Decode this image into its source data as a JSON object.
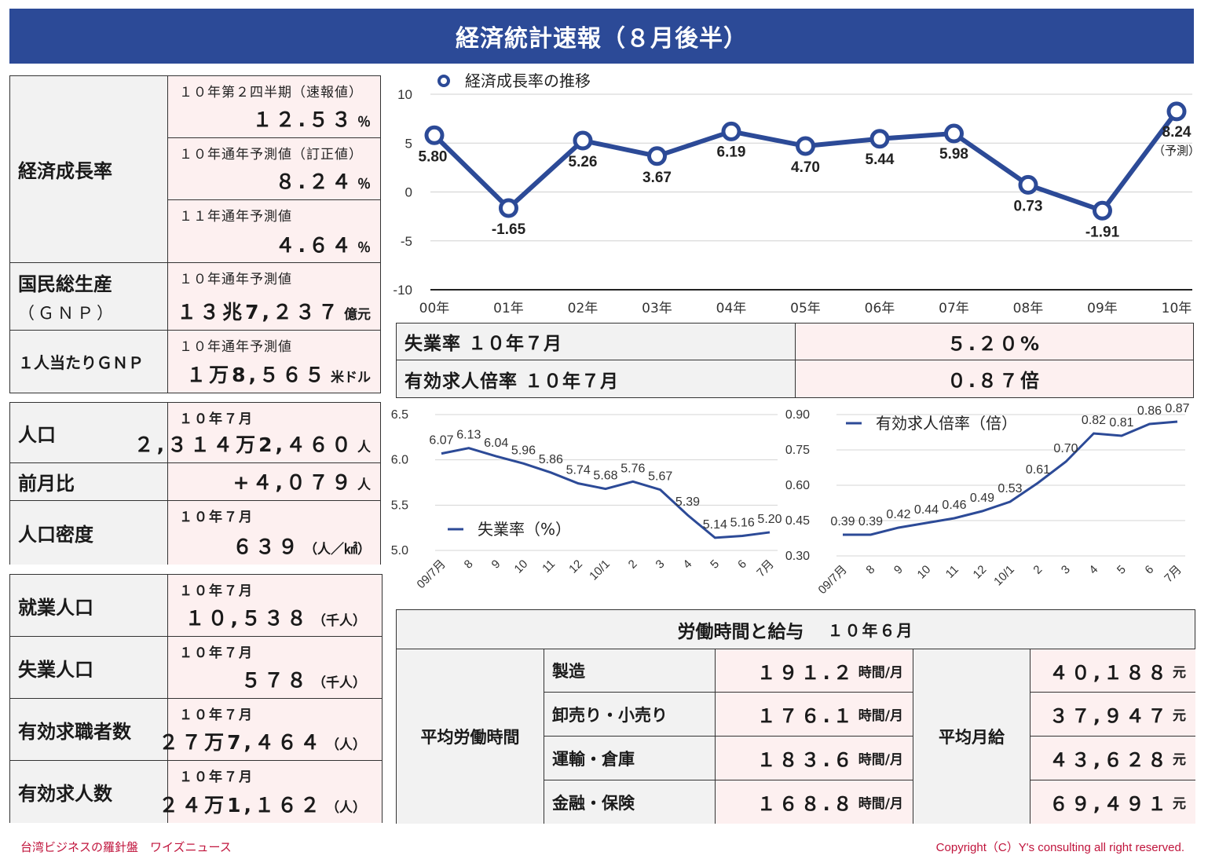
{
  "title": "経済統計速報（８月後半）",
  "left_table1": {
    "growth_label": "経済成長率",
    "growth_items": [
      {
        "note": "１０年第２四半期（速報値）",
        "value": "１２.５３",
        "unit": "％"
      },
      {
        "note": "１０年通年予測値（訂正値）",
        "value": "８.２４",
        "unit": "％"
      },
      {
        "note": "１１年通年予測値",
        "value": "４.６４",
        "unit": "％"
      }
    ],
    "gnp_label": "国民総生産",
    "gnp_label2": "（ＧＮＰ）",
    "gnp_note": "１０年通年予測値",
    "gnp_value": "１３兆7,２３７",
    "gnp_unit": "億元",
    "gnp_pc_label": "１人当たりＧＮＰ",
    "gnp_pc_note": "１０年通年予測値",
    "gnp_pc_value": "１万8,５６５",
    "gnp_pc_unit": "米ドル"
  },
  "left_table2": {
    "pop_label": "人口",
    "pop_note": "１０年７月",
    "pop_value": "２,３１４万2,４６０",
    "pop_unit": "人",
    "mom_label": "前月比",
    "mom_value": "+４,０７９",
    "mom_unit": "人",
    "density_label": "人口密度",
    "density_note": "１０年７月",
    "density_value": "６３９",
    "density_unit": "（人／㎢）"
  },
  "left_table3": {
    "rows": [
      {
        "label": "就業人口",
        "note": "１０年７月",
        "value": "１０,５３８",
        "unit": "（千人）"
      },
      {
        "label": "失業人口",
        "note": "１０年７月",
        "value": "５７８",
        "unit": "（千人）"
      },
      {
        "label": "有効求職者数",
        "note": "１０年７月",
        "value": "２７万7,４６４",
        "unit": "（人）"
      },
      {
        "label": "有効求人数",
        "note": "１０年７月",
        "value": "２４万1,１６２",
        "unit": "（人）"
      }
    ]
  },
  "unemployment": {
    "rate_label": "失業率 １０年７月",
    "rate_value": "５.２０%",
    "ratio_label": "有効求人倍率 １０年７月",
    "ratio_value": "０.８７倍"
  },
  "labor": {
    "title": "労働時間と給与",
    "month": "１０年６月",
    "hours_label": "平均労働時間",
    "salary_label": "平均月給",
    "hours_unit": "時間/月",
    "salary_unit": "元",
    "rows": [
      {
        "sector": "製造",
        "hours": "１９１.２",
        "salary": "４０,１８８"
      },
      {
        "sector": "卸売り・小売り",
        "hours": "１７６.１",
        "salary": "３７,９４７"
      },
      {
        "sector": "運輸・倉庫",
        "hours": "１８３.６",
        "salary": "４３,６２８"
      },
      {
        "sector": "金融・保険",
        "hours": "１６８.８",
        "salary": "６９,４９１"
      }
    ]
  },
  "footer": {
    "left": "台湾ビジネスの羅針盤　ワイズニュース",
    "right": "Copyright（C）Y's consulting all right reserved."
  },
  "colors": {
    "banner": "#2c4a97",
    "series": "#2c4a97",
    "value_bg": "#fdf0f0",
    "label_bg": "#f2f2f2",
    "footer": "#c0143c"
  },
  "chart_data": [
    {
      "type": "line",
      "title": "",
      "legend": "経済成長率の推移",
      "legend_position": "top-left",
      "categories": [
        "00年",
        "01年",
        "02年",
        "03年",
        "04年",
        "05年",
        "06年",
        "07年",
        "08年",
        "09年",
        "10年"
      ],
      "values": [
        5.8,
        -1.65,
        5.26,
        3.67,
        6.19,
        4.7,
        5.44,
        5.98,
        0.73,
        -1.91,
        8.24
      ],
      "data_labels": [
        "5.80",
        "-1.65",
        "5.26",
        "3.67",
        "6.19",
        "4.70",
        "5.44",
        "5.98",
        "0.73",
        "-1.91",
        "8.24"
      ],
      "last_note": "（予測）",
      "ylim": [
        -10,
        10
      ],
      "yticks": [
        "10",
        "5",
        "0",
        "-5",
        "-10"
      ],
      "grid": true
    },
    {
      "type": "line",
      "legend": "失業率（%）",
      "legend_position": "bottom-left",
      "categories": [
        "09/7月",
        "8",
        "9",
        "10",
        "11",
        "12",
        "10/1",
        "2",
        "3",
        "4",
        "5",
        "6",
        "7月"
      ],
      "values": [
        6.07,
        6.13,
        6.04,
        5.96,
        5.86,
        5.74,
        5.68,
        5.76,
        5.67,
        5.39,
        5.14,
        5.16,
        5.2
      ],
      "data_labels": [
        "6.07",
        "6.13",
        "6.04",
        "5.96",
        "5.86",
        "5.74",
        "5.68",
        "5.76",
        "5.67",
        "5.39",
        "5.14",
        "5.16",
        "5.20"
      ],
      "ylim": [
        5.0,
        6.5
      ],
      "yticks": [
        "6.5",
        "6.0",
        "5.5",
        "5.0"
      ],
      "grid": true
    },
    {
      "type": "line",
      "legend": "有効求人倍率（倍）",
      "legend_position": "top-left",
      "categories": [
        "09/7月",
        "8",
        "9",
        "10",
        "11",
        "12",
        "10/1",
        "2",
        "3",
        "4",
        "5",
        "6",
        "7月"
      ],
      "values": [
        0.39,
        0.39,
        0.42,
        0.44,
        0.46,
        0.49,
        0.53,
        0.61,
        0.7,
        0.82,
        0.81,
        0.86,
        0.87
      ],
      "data_labels": [
        "0.39",
        "0.39",
        "0.42",
        "0.44",
        "0.46",
        "0.49",
        "0.53",
        "0.61",
        "0.70",
        "0.82",
        "0.81",
        "0.86",
        "0.87"
      ],
      "ylim": [
        0.3,
        0.9
      ],
      "yticks": [
        "0.90",
        "0.75",
        "0.60",
        "0.45",
        "0.30"
      ],
      "grid": true
    }
  ]
}
